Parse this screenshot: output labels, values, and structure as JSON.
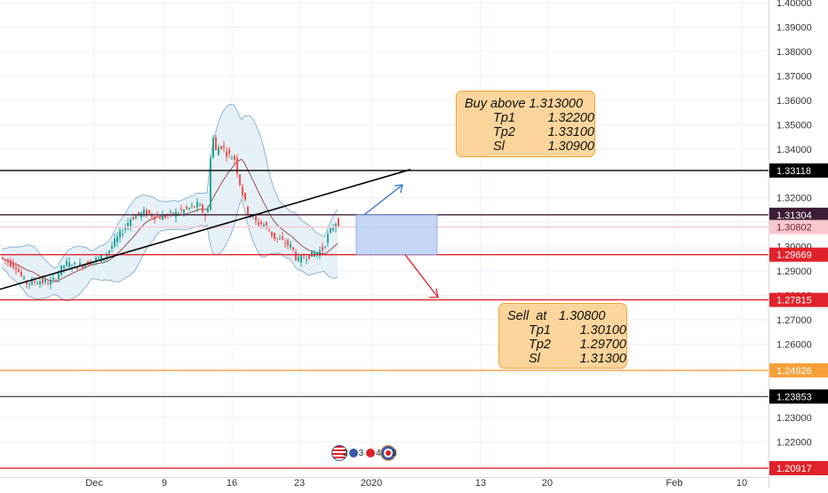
{
  "chart_data": {
    "type": "candlestick",
    "y_axis": {
      "position": "right",
      "ylim": [
        1.207,
        1.4
      ],
      "tick_labels": [
        "1.40000",
        "1.39000",
        "1.38000",
        "1.37000",
        "1.36000",
        "1.35000",
        "1.34000",
        "1.33000",
        "1.32000",
        "1.31000",
        "1.30000",
        "1.29000",
        "1.28000",
        "1.27000",
        "1.26000",
        "1.25000",
        "1.24000",
        "1.23000",
        "1.22000",
        "1.21000"
      ],
      "tick_values": [
        1.4,
        1.39,
        1.38,
        1.37,
        1.36,
        1.35,
        1.34,
        1.33,
        1.32,
        1.31,
        1.3,
        1.29,
        1.28,
        1.27,
        1.26,
        1.25,
        1.24,
        1.23,
        1.22,
        1.21
      ]
    },
    "x_axis": {
      "tick_labels": [
        "Dec",
        "9",
        "16",
        "23",
        "2020",
        "13",
        "20",
        "Feb",
        "10"
      ]
    },
    "price_lines": [
      {
        "label": "1.33118",
        "value": 1.33118,
        "line_color": "#000000",
        "badge_color": "#000000",
        "text_color": "#ffffff"
      },
      {
        "label": "1.31304",
        "value": 1.31304,
        "line_color": "#3d1d35",
        "badge_color": "#3d1d35",
        "text_color": "#ffffff"
      },
      {
        "label": "1.30802",
        "value": 1.30802,
        "line_color": "#f7c9cf",
        "badge_color": "#f7c9cf",
        "text_color": "#7a1f2b"
      },
      {
        "label": "1.29669",
        "value": 1.29669,
        "line_color": "#e0222a",
        "badge_color": "#e0222a",
        "text_color": "#ffffff"
      },
      {
        "label": "1.27815",
        "value": 1.27815,
        "line_color": "#e0222a",
        "badge_color": "#e0222a",
        "text_color": "#ffffff"
      },
      {
        "label": "1.24926",
        "value": 1.24926,
        "line_color": "#f7a03a",
        "badge_color": "#f7a03a",
        "text_color": "#ffffff"
      },
      {
        "label": "1.23853",
        "value": 1.23853,
        "line_color": "#555555",
        "badge_color": "#000000",
        "text_color": "#ffffff"
      },
      {
        "label": "1.20917",
        "value": 1.20917,
        "line_color": "#e0222a",
        "badge_color": "#e0222a",
        "text_color": "#ffffff"
      }
    ],
    "trend_line": {
      "from": [
        0.0,
        1.2825
      ],
      "to": [
        462.0,
        1.3316
      ],
      "color": "#000000",
      "x_units": "index"
    },
    "projection": {
      "box": {
        "from_value": 1.31304,
        "to_value": 1.29669,
        "fill": "#bcd0f5",
        "stroke": "#7da2e8"
      },
      "up_arrow": {
        "to_value": 1.3253
      },
      "down_arrow": {
        "to_value": 1.2792
      }
    },
    "candle_up_color": "#26a69a",
    "candle_down_color": "#ef5350",
    "band_fill": "#dbeaf4",
    "band_stroke": "#8fb4d0",
    "middle_line_color": "#9b5050"
  },
  "notes": {
    "buy": {
      "rows": [
        {
          "k": "Buy above",
          "v": "1.313000",
          "kind": "title"
        },
        {
          "k": "Tp1",
          "v": "1.32200"
        },
        {
          "k": "Tp2",
          "v": "1.33100"
        },
        {
          "k": "Sl",
          "v": "1.30900"
        }
      ]
    },
    "sell": {
      "rows": [
        {
          "k": "Sell  at",
          "v": "1.30800"
        },
        {
          "k": "Tp1",
          "v": "1.30100"
        },
        {
          "k": "Tp2",
          "v": "1.29700"
        },
        {
          "k": "Sl",
          "v": "1.31300"
        }
      ]
    }
  },
  "events": {
    "us": {
      "counts": [
        "2",
        "3",
        "4"
      ],
      "colors": [
        "#3c5aa6",
        "#e0222a",
        "#3c5aa6"
      ]
    },
    "uk": {
      "counts": [
        "3"
      ],
      "colors": [
        "#e0222a"
      ]
    }
  }
}
